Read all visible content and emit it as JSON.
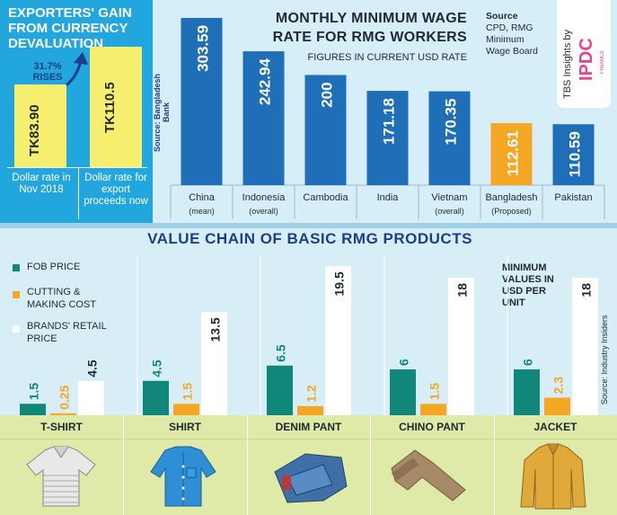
{
  "colors": {
    "blue": "#1f6fb8",
    "orange": "#f5a623",
    "teal": "#11867a",
    "white": "#ffffff",
    "yellow": "#f6ee6e",
    "title_blue": "#1b3f8a"
  },
  "left_panel": {
    "title": "EXPORTERS' GAIN FROM CURRENCY DEVALUATION",
    "rise_pct": "31.7%",
    "rise_label": "RISES",
    "box1_value": "TK83.90",
    "box2_value": "TK110.5",
    "box1_caption": "Dollar rate in Nov 2018",
    "box2_caption": "Dollar rate for export proceeds now",
    "source": "Source: Bangladesh Bank"
  },
  "brand": {
    "text": "TBS Insights by",
    "logo": "IPDC",
    "logo_sub": "FINANCE"
  },
  "chart_data": [
    {
      "type": "bar",
      "title": "MONTHLY MINIMUM WAGE RATE FOR RMG WORKERS",
      "subtitle": "FIGURES IN CURRENT USD RATE",
      "source": "Source CPD, RMG Minimum Wage Board",
      "categories": [
        "China",
        "Indonesia",
        "Cambodia",
        "India",
        "Vietnam",
        "Bangladesh",
        "Pakistan"
      ],
      "category_notes": [
        "(mean)",
        "(overall)",
        "",
        "",
        "(overall)",
        "(Proposed)",
        ""
      ],
      "values": [
        303.59,
        242.94,
        200,
        171.18,
        170.35,
        112.61,
        110.59
      ],
      "value_labels": [
        "303.59",
        "242.94",
        "200",
        "171.18",
        "170.35",
        "112.61",
        "110.59"
      ],
      "highlight": "Bangladesh"
    },
    {
      "type": "bar",
      "title": "VALUE CHAIN OF BASIC RMG PRODUCTS",
      "note": "MINIMUM VALUES IN USD PER UNIT",
      "source": "Source: Industry Insiders",
      "categories": [
        "T-SHIRT",
        "SHIRT",
        "DENIM PANT",
        "CHINO PANT",
        "JACKET"
      ],
      "series": [
        {
          "name": "FOB PRICE",
          "values": [
            1.5,
            4.5,
            6.5,
            6,
            6
          ],
          "labels": [
            "1.5",
            "4.5",
            "6.5",
            "6",
            "6"
          ]
        },
        {
          "name": "CUTTING & MAKING COST",
          "values": [
            0.25,
            1.5,
            1.2,
            1.5,
            2.3
          ],
          "labels": [
            "0.25",
            "1.5",
            "1.2",
            "1.5",
            "2.3"
          ]
        },
        {
          "name": "BRANDS' RETAIL PRICE",
          "values": [
            4.5,
            13.5,
            19.5,
            18,
            18
          ],
          "labels": [
            "4.5",
            "13.5",
            "19.5",
            "18",
            "18"
          ]
        }
      ]
    }
  ],
  "legend": {
    "fob": "FOB PRICE",
    "cm_1": "CUTTING &",
    "cm_2": "MAKING COST",
    "retail_1": "BRANDS' RETAIL",
    "retail_2": "PRICE"
  },
  "note_lines": [
    "MINIMUM",
    "VALUES IN",
    "USD PER",
    "UNIT"
  ],
  "icons": [
    "polo-shirt-icon",
    "shirt-icon",
    "denim-pant-icon",
    "chino-pant-icon",
    "jacket-icon"
  ]
}
